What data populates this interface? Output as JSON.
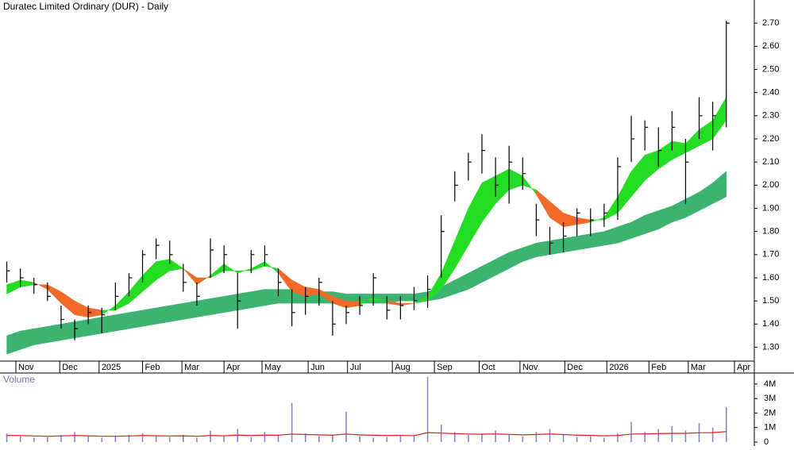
{
  "chart_data": [
    {
      "type": "candlestick",
      "title": "Duratec Limited Ordinary (DUR) - Daily",
      "xlim": [
        -0.5,
        53.6
      ],
      "xticks": [
        {
          "value": 0.67,
          "label": "Nov"
        },
        {
          "value": 3.9,
          "label": "Dec"
        },
        {
          "value": 6.8,
          "label": "2025"
        },
        {
          "value": 10.0,
          "label": "Feb"
        },
        {
          "value": 12.9,
          "label": "Mar"
        },
        {
          "value": 16.0,
          "label": "Apr"
        },
        {
          "value": 18.8,
          "label": "May"
        },
        {
          "value": 22.2,
          "label": "Jun"
        },
        {
          "value": 25.1,
          "label": "Jul"
        },
        {
          "value": 28.4,
          "label": "Aug"
        },
        {
          "value": 31.5,
          "label": "Sep"
        },
        {
          "value": 34.8,
          "label": "Oct"
        },
        {
          "value": 37.8,
          "label": "Nov"
        },
        {
          "value": 41.1,
          "label": "Dec"
        },
        {
          "value": 44.2,
          "label": "2026"
        },
        {
          "value": 47.3,
          "label": "Feb"
        },
        {
          "value": 50.2,
          "label": "Mar"
        },
        {
          "value": 53.6,
          "label": "Apr"
        }
      ],
      "ylim": [
        1.24,
        2.8
      ],
      "yticks": [
        {
          "value": 1.3,
          "label": "1.30"
        },
        {
          "value": 1.4,
          "label": "1.40"
        },
        {
          "value": 1.5,
          "label": "1.50"
        },
        {
          "value": 1.6,
          "label": "1.60"
        },
        {
          "value": 1.7,
          "label": "1.70"
        },
        {
          "value": 1.8,
          "label": "1.80"
        },
        {
          "value": 1.9,
          "label": "1.90"
        },
        {
          "value": 2.0,
          "label": "2.00"
        },
        {
          "value": 2.1,
          "label": "2.10"
        },
        {
          "value": 2.2,
          "label": "2.20"
        },
        {
          "value": 2.3,
          "label": "2.30"
        },
        {
          "value": 2.4,
          "label": "2.40"
        },
        {
          "value": 2.5,
          "label": "2.50"
        },
        {
          "value": 2.6,
          "label": "2.60"
        },
        {
          "value": 2.7,
          "label": "2.70"
        }
      ],
      "bar_color": "#000000",
      "up_color": "#22dd22",
      "down_color": "#f26a2a",
      "long_color": "#3cb371",
      "high": [
        1.67,
        1.64,
        1.6,
        1.58,
        1.48,
        1.42,
        1.48,
        1.47,
        1.58,
        1.62,
        1.72,
        1.77,
        1.76,
        1.66,
        1.58,
        1.77,
        1.74,
        1.62,
        1.72,
        1.74,
        1.64,
        1.55,
        1.56,
        1.6,
        1.5,
        1.48,
        1.52,
        1.62,
        1.52,
        1.52,
        1.56,
        1.61,
        1.87,
        2.06,
        2.14,
        2.22,
        2.12,
        2.17,
        2.12,
        1.92,
        1.82,
        1.84,
        1.9,
        1.9,
        1.92,
        2.12,
        2.3,
        2.28,
        2.25,
        2.32,
        2.2,
        2.38,
        2.36,
        2.71
      ],
      "low": [
        1.58,
        1.56,
        1.53,
        1.5,
        1.38,
        1.33,
        1.4,
        1.36,
        1.46,
        1.52,
        1.58,
        1.68,
        1.66,
        1.54,
        1.48,
        1.6,
        1.62,
        1.38,
        1.62,
        1.65,
        1.52,
        1.39,
        1.44,
        1.48,
        1.35,
        1.4,
        1.44,
        1.48,
        1.42,
        1.42,
        1.46,
        1.47,
        1.6,
        1.93,
        2.02,
        2.05,
        1.95,
        1.92,
        1.98,
        1.78,
        1.7,
        1.71,
        1.78,
        1.78,
        1.82,
        1.85,
        2.1,
        2.15,
        2.08,
        2.15,
        1.92,
        2.2,
        2.15,
        2.25
      ],
      "close": [
        1.63,
        1.6,
        1.57,
        1.52,
        1.42,
        1.38,
        1.45,
        1.44,
        1.52,
        1.6,
        1.7,
        1.74,
        1.7,
        1.58,
        1.52,
        1.72,
        1.7,
        1.5,
        1.7,
        1.7,
        1.58,
        1.45,
        1.52,
        1.58,
        1.4,
        1.45,
        1.48,
        1.6,
        1.46,
        1.48,
        1.5,
        1.55,
        1.8,
        2.0,
        2.1,
        2.15,
        2.0,
        2.1,
        2.05,
        1.85,
        1.75,
        1.78,
        1.88,
        1.85,
        1.88,
        2.08,
        2.2,
        2.25,
        2.15,
        2.25,
        2.1,
        2.3,
        2.3,
        2.7
      ],
      "fast": [
        1.57,
        1.59,
        1.58,
        1.55,
        1.49,
        1.44,
        1.43,
        1.44,
        1.48,
        1.54,
        1.61,
        1.67,
        1.68,
        1.64,
        1.57,
        1.61,
        1.66,
        1.62,
        1.64,
        1.67,
        1.62,
        1.54,
        1.52,
        1.53,
        1.49,
        1.47,
        1.48,
        1.52,
        1.49,
        1.48,
        1.49,
        1.52,
        1.62,
        1.76,
        1.9,
        2.01,
        2.04,
        2.07,
        2.04,
        1.96,
        1.86,
        1.82,
        1.83,
        1.84,
        1.86,
        1.95,
        2.06,
        2.13,
        2.15,
        2.19,
        2.18,
        2.24,
        2.28,
        2.38
      ],
      "slow": [
        1.53,
        1.56,
        1.57,
        1.57,
        1.54,
        1.5,
        1.47,
        1.46,
        1.46,
        1.49,
        1.54,
        1.59,
        1.63,
        1.64,
        1.6,
        1.6,
        1.63,
        1.63,
        1.63,
        1.65,
        1.64,
        1.59,
        1.56,
        1.55,
        1.52,
        1.5,
        1.5,
        1.5,
        1.5,
        1.49,
        1.49,
        1.5,
        1.55,
        1.64,
        1.74,
        1.84,
        1.92,
        1.98,
        2.0,
        1.98,
        1.93,
        1.88,
        1.86,
        1.85,
        1.85,
        1.88,
        1.95,
        2.02,
        2.07,
        2.11,
        2.14,
        2.17,
        2.2,
        2.28
      ],
      "long_upper": [
        1.35,
        1.37,
        1.38,
        1.39,
        1.4,
        1.41,
        1.42,
        1.43,
        1.44,
        1.45,
        1.46,
        1.47,
        1.48,
        1.49,
        1.5,
        1.51,
        1.52,
        1.53,
        1.54,
        1.55,
        1.55,
        1.55,
        1.55,
        1.54,
        1.54,
        1.53,
        1.53,
        1.53,
        1.53,
        1.53,
        1.53,
        1.54,
        1.56,
        1.59,
        1.62,
        1.65,
        1.68,
        1.71,
        1.73,
        1.75,
        1.76,
        1.77,
        1.78,
        1.79,
        1.8,
        1.82,
        1.84,
        1.87,
        1.89,
        1.91,
        1.94,
        1.97,
        2.01,
        2.06
      ],
      "long_lower": [
        1.27,
        1.29,
        1.31,
        1.32,
        1.33,
        1.34,
        1.35,
        1.36,
        1.37,
        1.38,
        1.39,
        1.4,
        1.41,
        1.42,
        1.43,
        1.44,
        1.45,
        1.46,
        1.47,
        1.48,
        1.49,
        1.49,
        1.49,
        1.49,
        1.49,
        1.49,
        1.49,
        1.49,
        1.49,
        1.5,
        1.5,
        1.5,
        1.51,
        1.53,
        1.55,
        1.58,
        1.61,
        1.64,
        1.67,
        1.69,
        1.7,
        1.71,
        1.72,
        1.73,
        1.74,
        1.75,
        1.77,
        1.79,
        1.81,
        1.84,
        1.86,
        1.89,
        1.92,
        1.95
      ]
    },
    {
      "type": "bar",
      "title": "Volume",
      "color": "#8a84c8",
      "ma_color": "#e02020",
      "ylim": [
        0,
        4650000
      ],
      "yticks": [
        0,
        {
          "value": 1000000,
          "label": "1M"
        },
        {
          "value": 2000000,
          "label": "2M"
        },
        {
          "value": 3000000,
          "label": "3M"
        },
        {
          "value": 4000000,
          "label": "4M"
        }
      ],
      "values": [
        600000,
        400000,
        300000,
        350000,
        500000,
        700000,
        400000,
        300000,
        450000,
        500000,
        600000,
        400000,
        350000,
        500000,
        300000,
        800000,
        400000,
        900000,
        350000,
        700000,
        500000,
        2700000,
        600000,
        400000,
        500000,
        2100000,
        400000,
        300000,
        350000,
        500000,
        400000,
        4500000,
        1200000,
        700000,
        500000,
        600000,
        800000,
        500000,
        400000,
        700000,
        900000,
        500000,
        350000,
        400000,
        300000,
        600000,
        1400000,
        700000,
        900000,
        1100000,
        800000,
        1300000,
        1000000,
        2400000
      ],
      "ma": [
        450000,
        450000,
        420000,
        400000,
        420000,
        450000,
        430000,
        400000,
        400000,
        420000,
        450000,
        430000,
        420000,
        430000,
        400000,
        450000,
        430000,
        480000,
        450000,
        480000,
        470000,
        550000,
        520000,
        500000,
        480000,
        550000,
        500000,
        470000,
        450000,
        460000,
        440000,
        650000,
        620000,
        580000,
        550000,
        540000,
        560000,
        530000,
        500000,
        520000,
        560000,
        520000,
        480000,
        460000,
        430000,
        450000,
        550000,
        560000,
        580000,
        600000,
        600000,
        640000,
        650000,
        720000
      ]
    }
  ]
}
